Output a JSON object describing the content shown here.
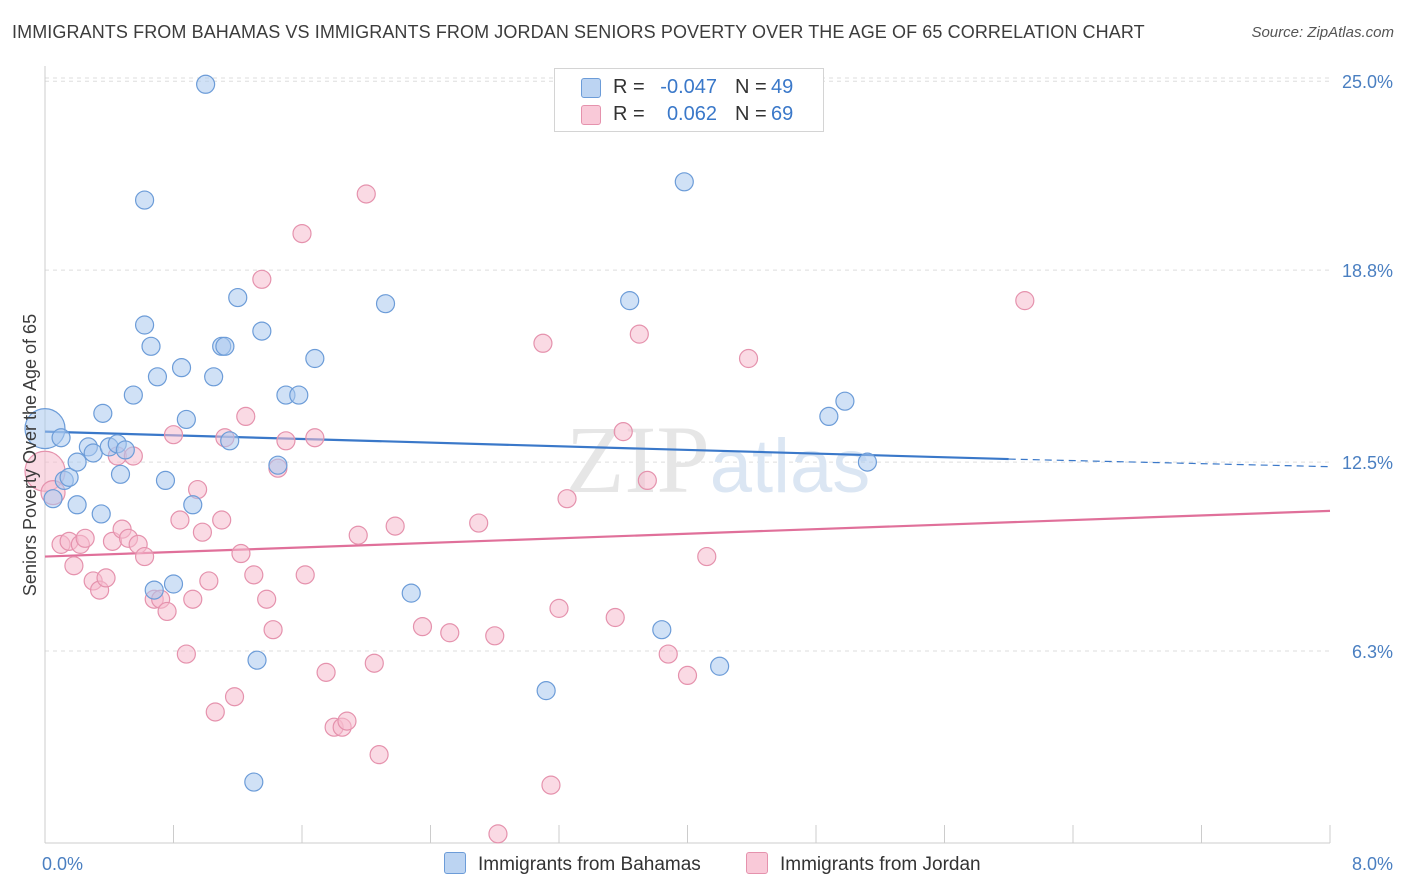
{
  "title": "IMMIGRANTS FROM BAHAMAS VS IMMIGRANTS FROM JORDAN SENIORS POVERTY OVER THE AGE OF 65 CORRELATION CHART",
  "source": "Source: ZipAtlas.com",
  "watermark": "ZIPatlas",
  "legend": {
    "r_label": "R =",
    "n_label": "N =",
    "rows": [
      {
        "r": "-0.047",
        "n": "49"
      },
      {
        "r": "0.062",
        "n": "69"
      }
    ]
  },
  "colors": {
    "bahamas_fill": "#a9c8ee",
    "bahamas_stroke": "#6c9cd8",
    "bahamas_line": "#3a78c9",
    "jordan_fill": "#f6bccd",
    "jordan_stroke": "#e592ad",
    "jordan_line": "#e0709a",
    "tick_text": "#4a7fc1",
    "grid": "#dddddd"
  },
  "chart_data": {
    "type": "scatter",
    "xlabel": "",
    "ylabel": "Seniors Poverty Over the Age of 65",
    "xlim": [
      0,
      8
    ],
    "ylim": [
      0,
      25.5
    ],
    "x_tick_labels": [
      "0.0%",
      "8.0%"
    ],
    "y_ticks": [
      25.0,
      18.8,
      12.5,
      6.3
    ],
    "y_tick_labels": [
      "25.0%",
      "18.8%",
      "12.5%",
      "6.3%"
    ],
    "grid": "horizontal dashed",
    "legend_position": "top-center",
    "series": [
      {
        "name": "Immigrants from Bahamas",
        "r": -0.047,
        "n": 49,
        "trend": {
          "x0": 0.0,
          "y0": 13.5,
          "x1": 6.0,
          "y1": 12.6,
          "dash_to": 8.0,
          "dash_y": 12.35
        },
        "points": [
          [
            0.0,
            13.6
          ],
          [
            0.1,
            13.3
          ],
          [
            0.12,
            11.9
          ],
          [
            0.15,
            12.0
          ],
          [
            0.05,
            11.3
          ],
          [
            0.2,
            11.1
          ],
          [
            0.2,
            12.5
          ],
          [
            0.27,
            13.0
          ],
          [
            0.3,
            12.8
          ],
          [
            0.35,
            10.8
          ],
          [
            0.36,
            14.1
          ],
          [
            0.4,
            13.0
          ],
          [
            0.45,
            13.1
          ],
          [
            0.47,
            12.1
          ],
          [
            0.5,
            12.9
          ],
          [
            0.55,
            14.7
          ],
          [
            0.62,
            17.0
          ],
          [
            0.66,
            16.3
          ],
          [
            0.7,
            15.3
          ],
          [
            0.75,
            11.9
          ],
          [
            0.8,
            8.5
          ],
          [
            0.85,
            15.6
          ],
          [
            0.88,
            13.9
          ],
          [
            0.92,
            11.1
          ],
          [
            1.0,
            24.9
          ],
          [
            1.05,
            15.3
          ],
          [
            1.1,
            16.3
          ],
          [
            1.12,
            16.3
          ],
          [
            1.15,
            13.2
          ],
          [
            1.2,
            17.9
          ],
          [
            1.3,
            2.0
          ],
          [
            1.32,
            6.0
          ],
          [
            1.35,
            16.8
          ],
          [
            1.45,
            12.4
          ],
          [
            1.5,
            14.7
          ],
          [
            1.58,
            14.7
          ],
          [
            1.68,
            15.9
          ],
          [
            2.12,
            17.7
          ],
          [
            2.28,
            8.2
          ],
          [
            3.12,
            5.0
          ],
          [
            3.64,
            17.8
          ],
          [
            3.84,
            7.0
          ],
          [
            3.98,
            21.7
          ],
          [
            4.2,
            5.8
          ],
          [
            4.88,
            14.0
          ],
          [
            4.98,
            14.5
          ],
          [
            5.12,
            12.5
          ],
          [
            0.62,
            21.1
          ],
          [
            0.68,
            8.3
          ]
        ]
      },
      {
        "name": "Immigrants from Jordan",
        "r": 0.062,
        "n": 69,
        "trend": {
          "x0": 0.0,
          "y0": 9.4,
          "x1": 8.0,
          "y1": 10.9
        },
        "points": [
          [
            0.0,
            12.2
          ],
          [
            0.05,
            11.5
          ],
          [
            0.1,
            9.8
          ],
          [
            0.15,
            9.9
          ],
          [
            0.18,
            9.1
          ],
          [
            0.22,
            9.8
          ],
          [
            0.25,
            10.0
          ],
          [
            0.3,
            8.6
          ],
          [
            0.34,
            8.3
          ],
          [
            0.38,
            8.7
          ],
          [
            0.42,
            9.9
          ],
          [
            0.45,
            12.7
          ],
          [
            0.48,
            10.3
          ],
          [
            0.52,
            10.0
          ],
          [
            0.55,
            12.7
          ],
          [
            0.58,
            9.8
          ],
          [
            0.62,
            9.4
          ],
          [
            0.68,
            8.0
          ],
          [
            0.72,
            8.0
          ],
          [
            0.76,
            7.6
          ],
          [
            0.8,
            13.4
          ],
          [
            0.84,
            10.6
          ],
          [
            0.88,
            6.2
          ],
          [
            0.92,
            8.0
          ],
          [
            0.95,
            11.6
          ],
          [
            0.98,
            10.2
          ],
          [
            1.02,
            8.6
          ],
          [
            1.06,
            4.3
          ],
          [
            1.1,
            10.6
          ],
          [
            1.12,
            13.3
          ],
          [
            1.18,
            4.8
          ],
          [
            1.22,
            9.5
          ],
          [
            1.25,
            14.0
          ],
          [
            1.3,
            8.8
          ],
          [
            1.38,
            8.0
          ],
          [
            1.42,
            7.0
          ],
          [
            1.45,
            12.3
          ],
          [
            1.5,
            13.2
          ],
          [
            1.6,
            20.0
          ],
          [
            1.62,
            8.8
          ],
          [
            1.68,
            13.3
          ],
          [
            1.75,
            5.6
          ],
          [
            1.8,
            3.8
          ],
          [
            1.85,
            3.8
          ],
          [
            1.88,
            4.0
          ],
          [
            1.95,
            10.1
          ],
          [
            2.0,
            21.3
          ],
          [
            2.05,
            5.9
          ],
          [
            2.08,
            2.9
          ],
          [
            2.18,
            10.4
          ],
          [
            2.35,
            7.1
          ],
          [
            2.52,
            6.9
          ],
          [
            2.7,
            10.5
          ],
          [
            2.8,
            6.8
          ],
          [
            2.82,
            0.3
          ],
          [
            3.1,
            16.4
          ],
          [
            3.15,
            1.9
          ],
          [
            3.2,
            7.7
          ],
          [
            3.25,
            11.3
          ],
          [
            3.55,
            7.4
          ],
          [
            3.6,
            13.5
          ],
          [
            3.7,
            16.7
          ],
          [
            3.75,
            11.9
          ],
          [
            3.88,
            6.2
          ],
          [
            4.0,
            5.5
          ],
          [
            4.12,
            9.4
          ],
          [
            4.38,
            15.9
          ],
          [
            6.1,
            17.8
          ],
          [
            1.35,
            18.5
          ]
        ]
      }
    ]
  }
}
